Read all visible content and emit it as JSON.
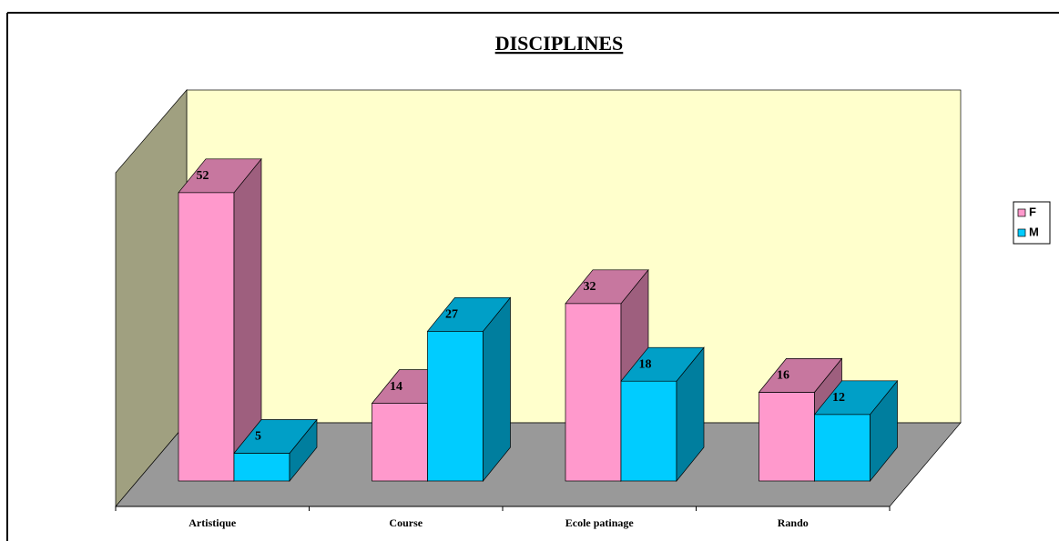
{
  "chart_data": {
    "type": "bar3d",
    "title": "DISCIPLINES",
    "categories": [
      "Artistique",
      "Course",
      "Ecole patinage",
      "Rando"
    ],
    "series": [
      {
        "name": "F",
        "color": "#ff99cc",
        "values": [
          52,
          14,
          32,
          16
        ]
      },
      {
        "name": "M",
        "color": "#00ccff",
        "values": [
          5,
          27,
          18,
          12
        ]
      }
    ],
    "legend": "right"
  }
}
